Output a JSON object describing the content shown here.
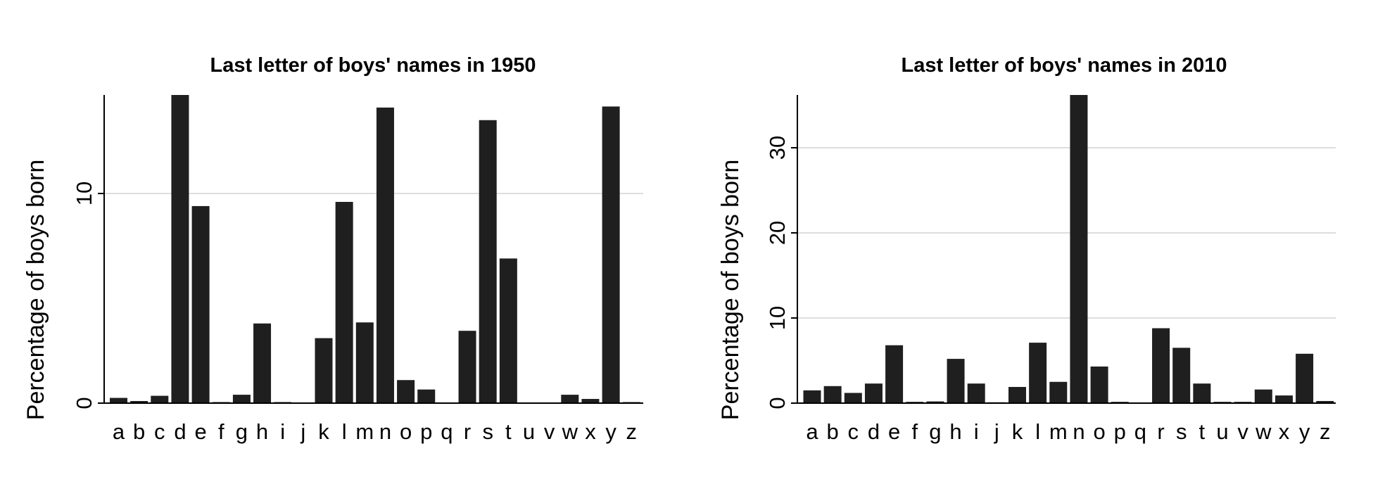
{
  "chart_data": [
    {
      "type": "bar",
      "title": "Last letter of boys' names in 1950",
      "xlabel": "",
      "ylabel": "Percentage of boys born",
      "categories": [
        "a",
        "b",
        "c",
        "d",
        "e",
        "f",
        "g",
        "h",
        "i",
        "j",
        "k",
        "l",
        "m",
        "n",
        "o",
        "p",
        "q",
        "r",
        "s",
        "t",
        "u",
        "v",
        "w",
        "x",
        "y",
        "z"
      ],
      "values": [
        0.25,
        0.1,
        0.35,
        14.7,
        9.4,
        0.05,
        0.4,
        3.8,
        0.05,
        0.03,
        3.1,
        9.6,
        3.85,
        14.1,
        1.1,
        0.65,
        0.02,
        3.45,
        13.5,
        6.9,
        0.02,
        0.02,
        0.4,
        0.2,
        14.15,
        0.05
      ],
      "yticks": [
        0,
        10
      ],
      "ylim": [
        0,
        14.7
      ],
      "grid": true,
      "bar_color": "#1f1f1f",
      "grid_color": "#d4d4d4"
    },
    {
      "type": "bar",
      "title": "Last letter of boys' names in 2010",
      "xlabel": "",
      "ylabel": "Percentage of boys born",
      "categories": [
        "a",
        "b",
        "c",
        "d",
        "e",
        "f",
        "g",
        "h",
        "i",
        "j",
        "k",
        "l",
        "m",
        "n",
        "o",
        "p",
        "q",
        "r",
        "s",
        "t",
        "u",
        "v",
        "w",
        "x",
        "y",
        "z"
      ],
      "values": [
        1.5,
        2.0,
        1.2,
        2.3,
        6.8,
        0.15,
        0.2,
        5.2,
        2.3,
        0.1,
        1.9,
        7.1,
        2.5,
        36.2,
        4.3,
        0.15,
        0.05,
        8.8,
        6.5,
        2.3,
        0.15,
        0.15,
        1.6,
        0.9,
        5.8,
        0.25
      ],
      "yticks": [
        0,
        10,
        20,
        30
      ],
      "ylim": [
        0,
        36.2
      ],
      "grid": true,
      "bar_color": "#1f1f1f",
      "grid_color": "#d4d4d4"
    }
  ]
}
